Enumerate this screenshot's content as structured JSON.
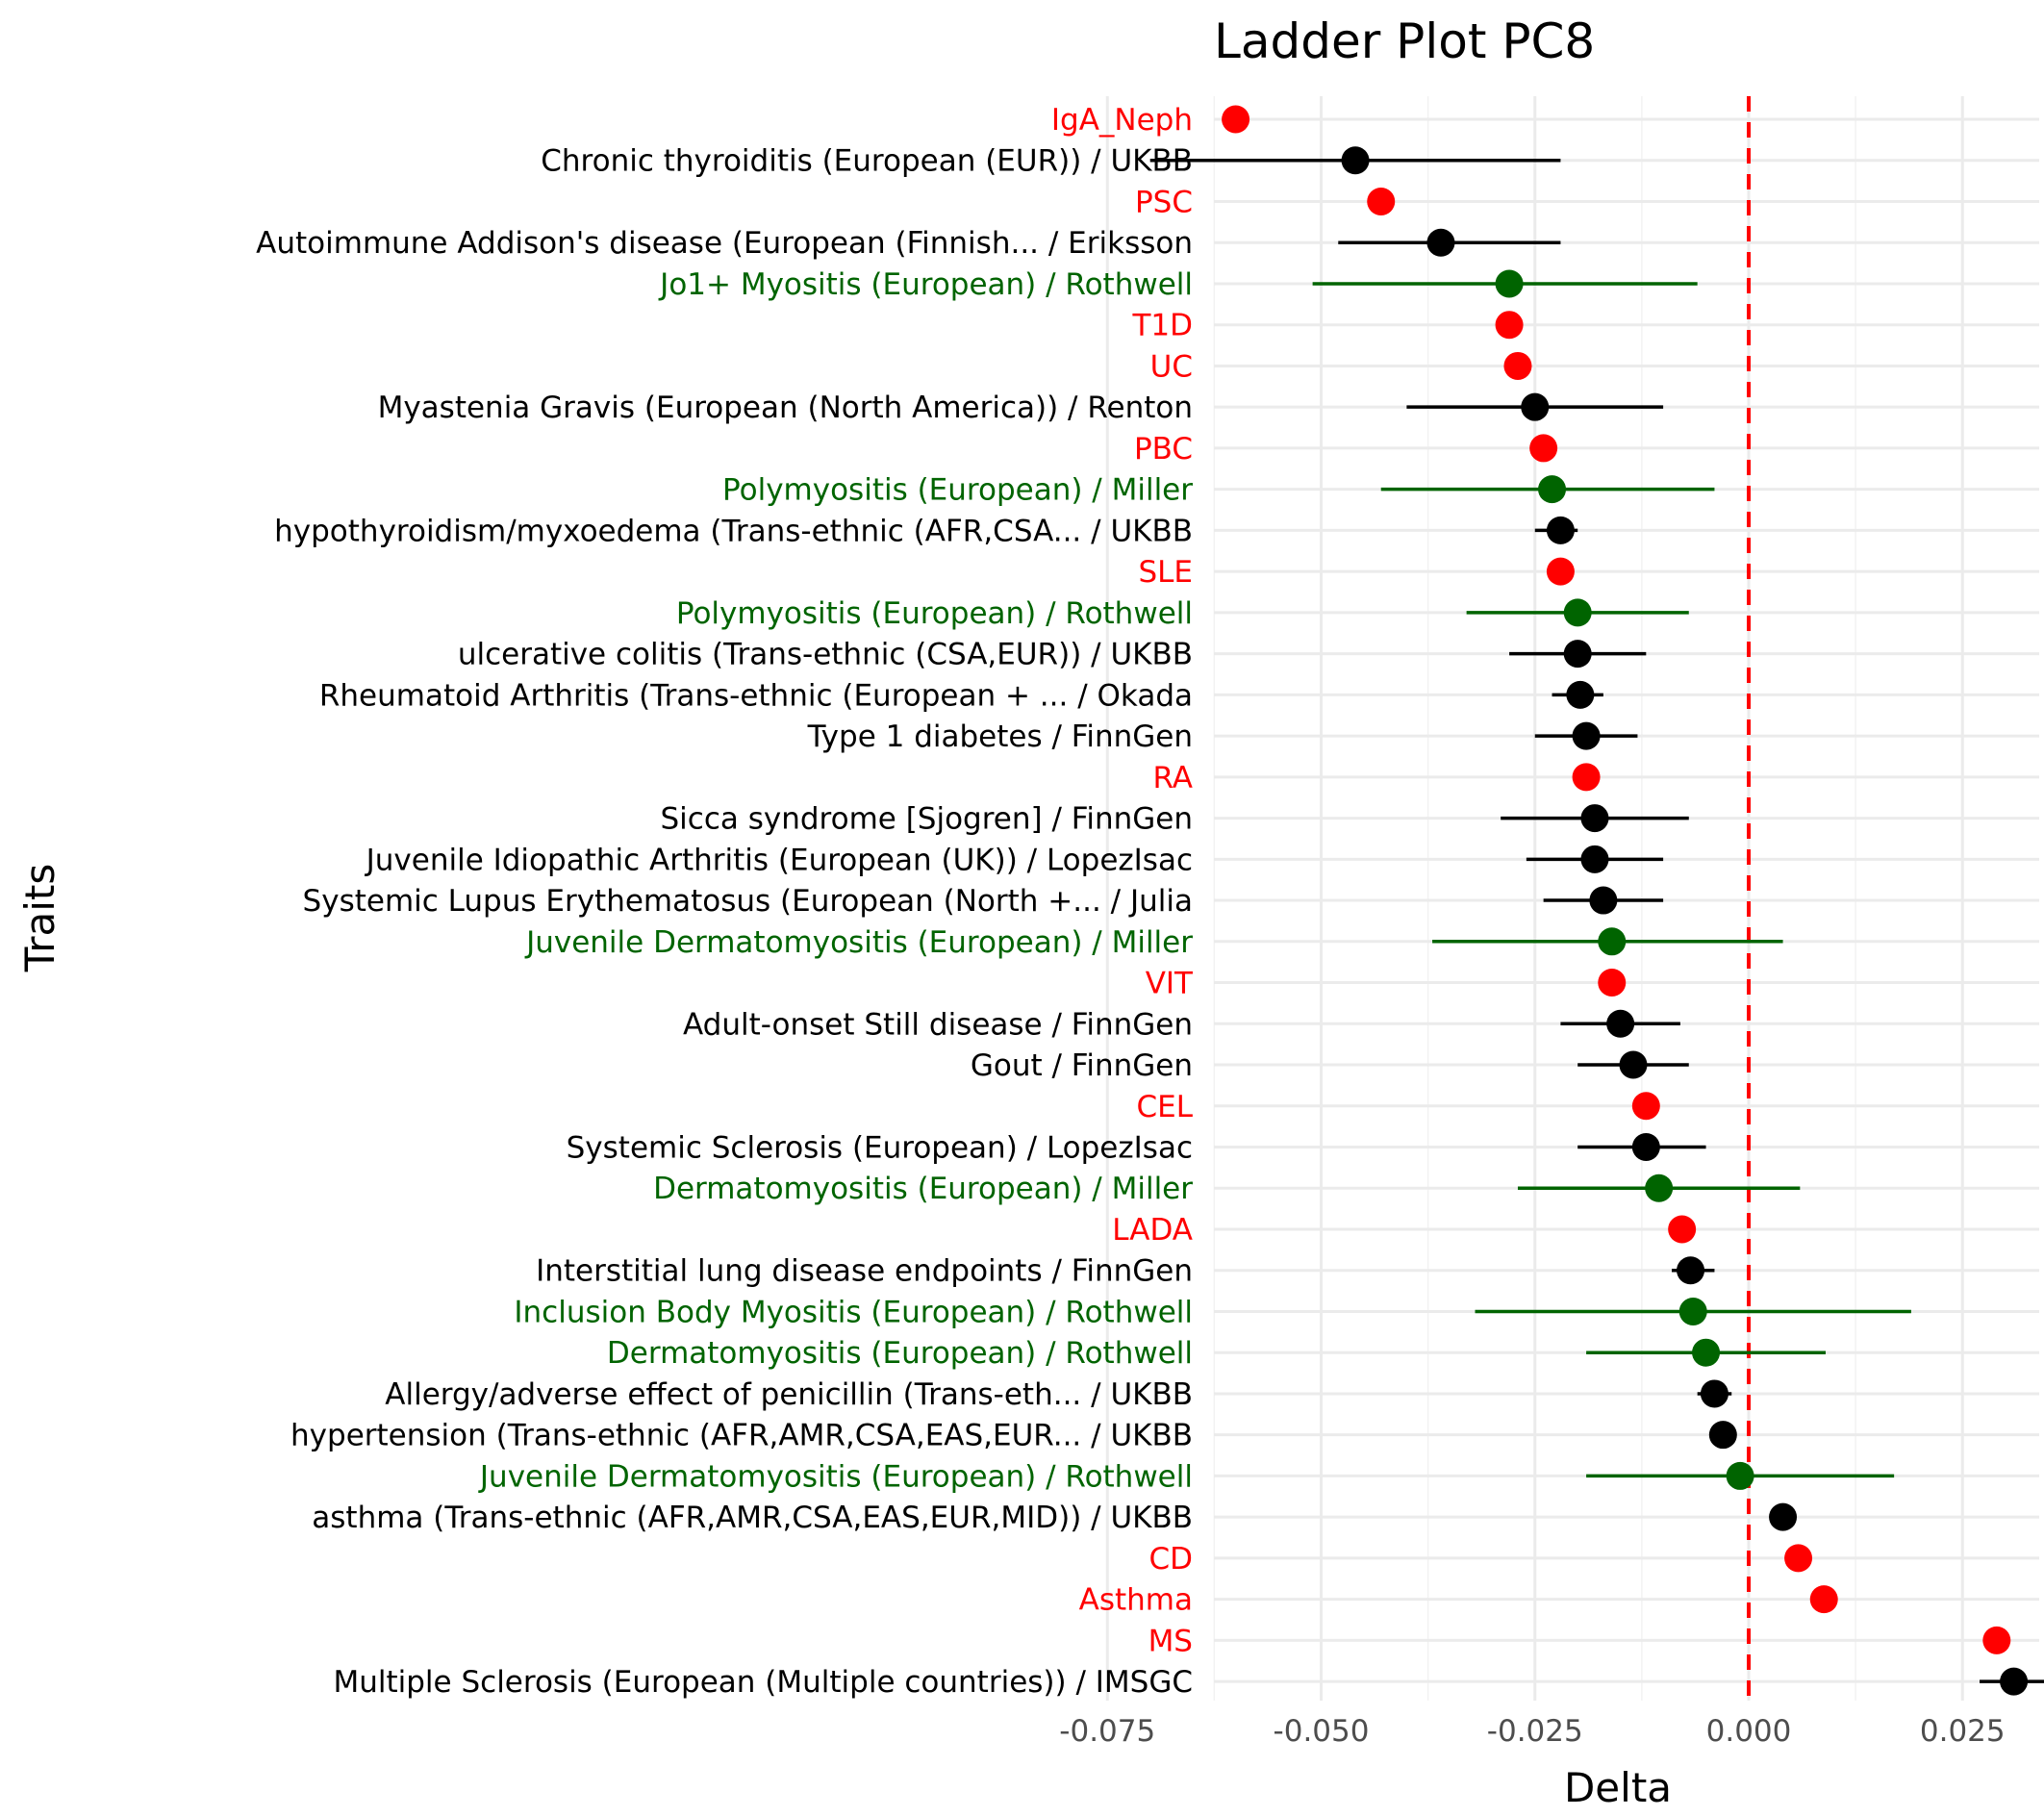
{
  "chart_data": {
    "type": "scatter",
    "title": "Ladder Plot PC8",
    "xlabel": "Delta",
    "ylabel": "Traits",
    "xlim": [
      -0.075,
      0.038
    ],
    "x_ticks": [
      -0.075,
      -0.05,
      -0.025,
      0.0,
      0.025
    ],
    "x_tick_labels": [
      "-0.075",
      "-0.050",
      "-0.025",
      "0.000",
      "0.025"
    ],
    "reference_line": {
      "x": 0.0,
      "color": "#ff0000",
      "style": "dashed"
    },
    "grid": true,
    "colors": {
      "red": "#ff0000",
      "black": "#000000",
      "green": "#006400"
    },
    "points": [
      {
        "label": "IgA_Neph",
        "delta": -0.06,
        "lo": null,
        "hi": null,
        "color": "red"
      },
      {
        "label": "Chronic thyroiditis (European (EUR)) / UKBB",
        "delta": -0.046,
        "lo": -0.07,
        "hi": -0.022,
        "color": "black"
      },
      {
        "label": "PSC",
        "delta": -0.043,
        "lo": null,
        "hi": null,
        "color": "red"
      },
      {
        "label": "Autoimmune Addison's disease (European (Finnish... / Eriksson",
        "delta": -0.036,
        "lo": -0.048,
        "hi": -0.022,
        "color": "black"
      },
      {
        "label": "Jo1+ Myositis (European) / Rothwell",
        "delta": -0.028,
        "lo": -0.051,
        "hi": -0.006,
        "color": "green"
      },
      {
        "label": "T1D",
        "delta": -0.028,
        "lo": null,
        "hi": null,
        "color": "red"
      },
      {
        "label": "UC",
        "delta": -0.027,
        "lo": null,
        "hi": null,
        "color": "red"
      },
      {
        "label": "Myastenia Gravis (European (North America)) / Renton",
        "delta": -0.025,
        "lo": -0.04,
        "hi": -0.01,
        "color": "black"
      },
      {
        "label": "PBC",
        "delta": -0.024,
        "lo": null,
        "hi": null,
        "color": "red"
      },
      {
        "label": "Polymyositis (European) / Miller",
        "delta": -0.023,
        "lo": -0.043,
        "hi": -0.004,
        "color": "green"
      },
      {
        "label": "hypothyroidism/myxoedema (Trans-ethnic (AFR,CSA... / UKBB",
        "delta": -0.022,
        "lo": -0.025,
        "hi": -0.02,
        "color": "black"
      },
      {
        "label": "SLE",
        "delta": -0.022,
        "lo": null,
        "hi": null,
        "color": "red"
      },
      {
        "label": "Polymyositis (European) / Rothwell",
        "delta": -0.02,
        "lo": -0.033,
        "hi": -0.007,
        "color": "green"
      },
      {
        "label": "ulcerative colitis (Trans-ethnic (CSA,EUR)) / UKBB",
        "delta": -0.02,
        "lo": -0.028,
        "hi": -0.012,
        "color": "black"
      },
      {
        "label": "Rheumatoid Arthritis (Trans-ethnic (European + ... / Okada",
        "delta": -0.0197,
        "lo": -0.023,
        "hi": -0.017,
        "color": "black"
      },
      {
        "label": "Type 1 diabetes / FinnGen",
        "delta": -0.019,
        "lo": -0.025,
        "hi": -0.013,
        "color": "black"
      },
      {
        "label": "RA",
        "delta": -0.019,
        "lo": null,
        "hi": null,
        "color": "red"
      },
      {
        "label": "Sicca syndrome [Sjogren] / FinnGen",
        "delta": -0.018,
        "lo": -0.029,
        "hi": -0.007,
        "color": "black"
      },
      {
        "label": "Juvenile Idiopathic Arthritis (European (UK)) / LopezIsac",
        "delta": -0.018,
        "lo": -0.026,
        "hi": -0.01,
        "color": "black"
      },
      {
        "label": "Systemic Lupus Erythematosus (European (North +... / Julia",
        "delta": -0.017,
        "lo": -0.024,
        "hi": -0.01,
        "color": "black"
      },
      {
        "label": "Juvenile Dermatomyositis (European) / Miller",
        "delta": -0.016,
        "lo": -0.037,
        "hi": 0.004,
        "color": "green"
      },
      {
        "label": "VIT",
        "delta": -0.016,
        "lo": null,
        "hi": null,
        "color": "red"
      },
      {
        "label": "Adult-onset Still disease / FinnGen",
        "delta": -0.015,
        "lo": -0.022,
        "hi": -0.008,
        "color": "black"
      },
      {
        "label": "Gout / FinnGen",
        "delta": -0.0135,
        "lo": -0.02,
        "hi": -0.007,
        "color": "black"
      },
      {
        "label": "CEL",
        "delta": -0.012,
        "lo": null,
        "hi": null,
        "color": "red"
      },
      {
        "label": "Systemic Sclerosis (European) / LopezIsac",
        "delta": -0.012,
        "lo": -0.02,
        "hi": -0.005,
        "color": "black"
      },
      {
        "label": "Dermatomyositis (European) / Miller",
        "delta": -0.0105,
        "lo": -0.027,
        "hi": 0.006,
        "color": "green"
      },
      {
        "label": "LADA",
        "delta": -0.0078,
        "lo": null,
        "hi": null,
        "color": "red"
      },
      {
        "label": "Interstitial lung disease endpoints / FinnGen",
        "delta": -0.0068,
        "lo": -0.009,
        "hi": -0.004,
        "color": "black"
      },
      {
        "label": "Inclusion Body Myositis (European) / Rothwell",
        "delta": -0.0065,
        "lo": -0.032,
        "hi": 0.019,
        "color": "green"
      },
      {
        "label": "Dermatomyositis (European) / Rothwell",
        "delta": -0.005,
        "lo": -0.019,
        "hi": 0.009,
        "color": "green"
      },
      {
        "label": "Allergy/adverse effect of penicillin (Trans-eth... / UKBB",
        "delta": -0.004,
        "lo": -0.006,
        "hi": -0.002,
        "color": "black"
      },
      {
        "label": "hypertension (Trans-ethnic (AFR,AMR,CSA,EAS,EUR... / UKBB",
        "delta": -0.003,
        "lo": -0.004,
        "hi": -0.002,
        "color": "black"
      },
      {
        "label": "Juvenile Dermatomyositis (European) / Rothwell",
        "delta": -0.001,
        "lo": -0.019,
        "hi": 0.017,
        "color": "green"
      },
      {
        "label": "asthma (Trans-ethnic (AFR,AMR,CSA,EAS,EUR,MID)) / UKBB",
        "delta": 0.004,
        "lo": 0.0035,
        "hi": 0.0045,
        "color": "black"
      },
      {
        "label": "CD",
        "delta": 0.0058,
        "lo": null,
        "hi": null,
        "color": "red"
      },
      {
        "label": "Asthma",
        "delta": 0.0088,
        "lo": null,
        "hi": null,
        "color": "red"
      },
      {
        "label": "MS",
        "delta": 0.029,
        "lo": null,
        "hi": null,
        "color": "red"
      },
      {
        "label": "Multiple Sclerosis (European (Multiple countries)) / IMSGC",
        "delta": 0.031,
        "lo": 0.027,
        "hi": 0.035,
        "color": "black"
      }
    ]
  }
}
